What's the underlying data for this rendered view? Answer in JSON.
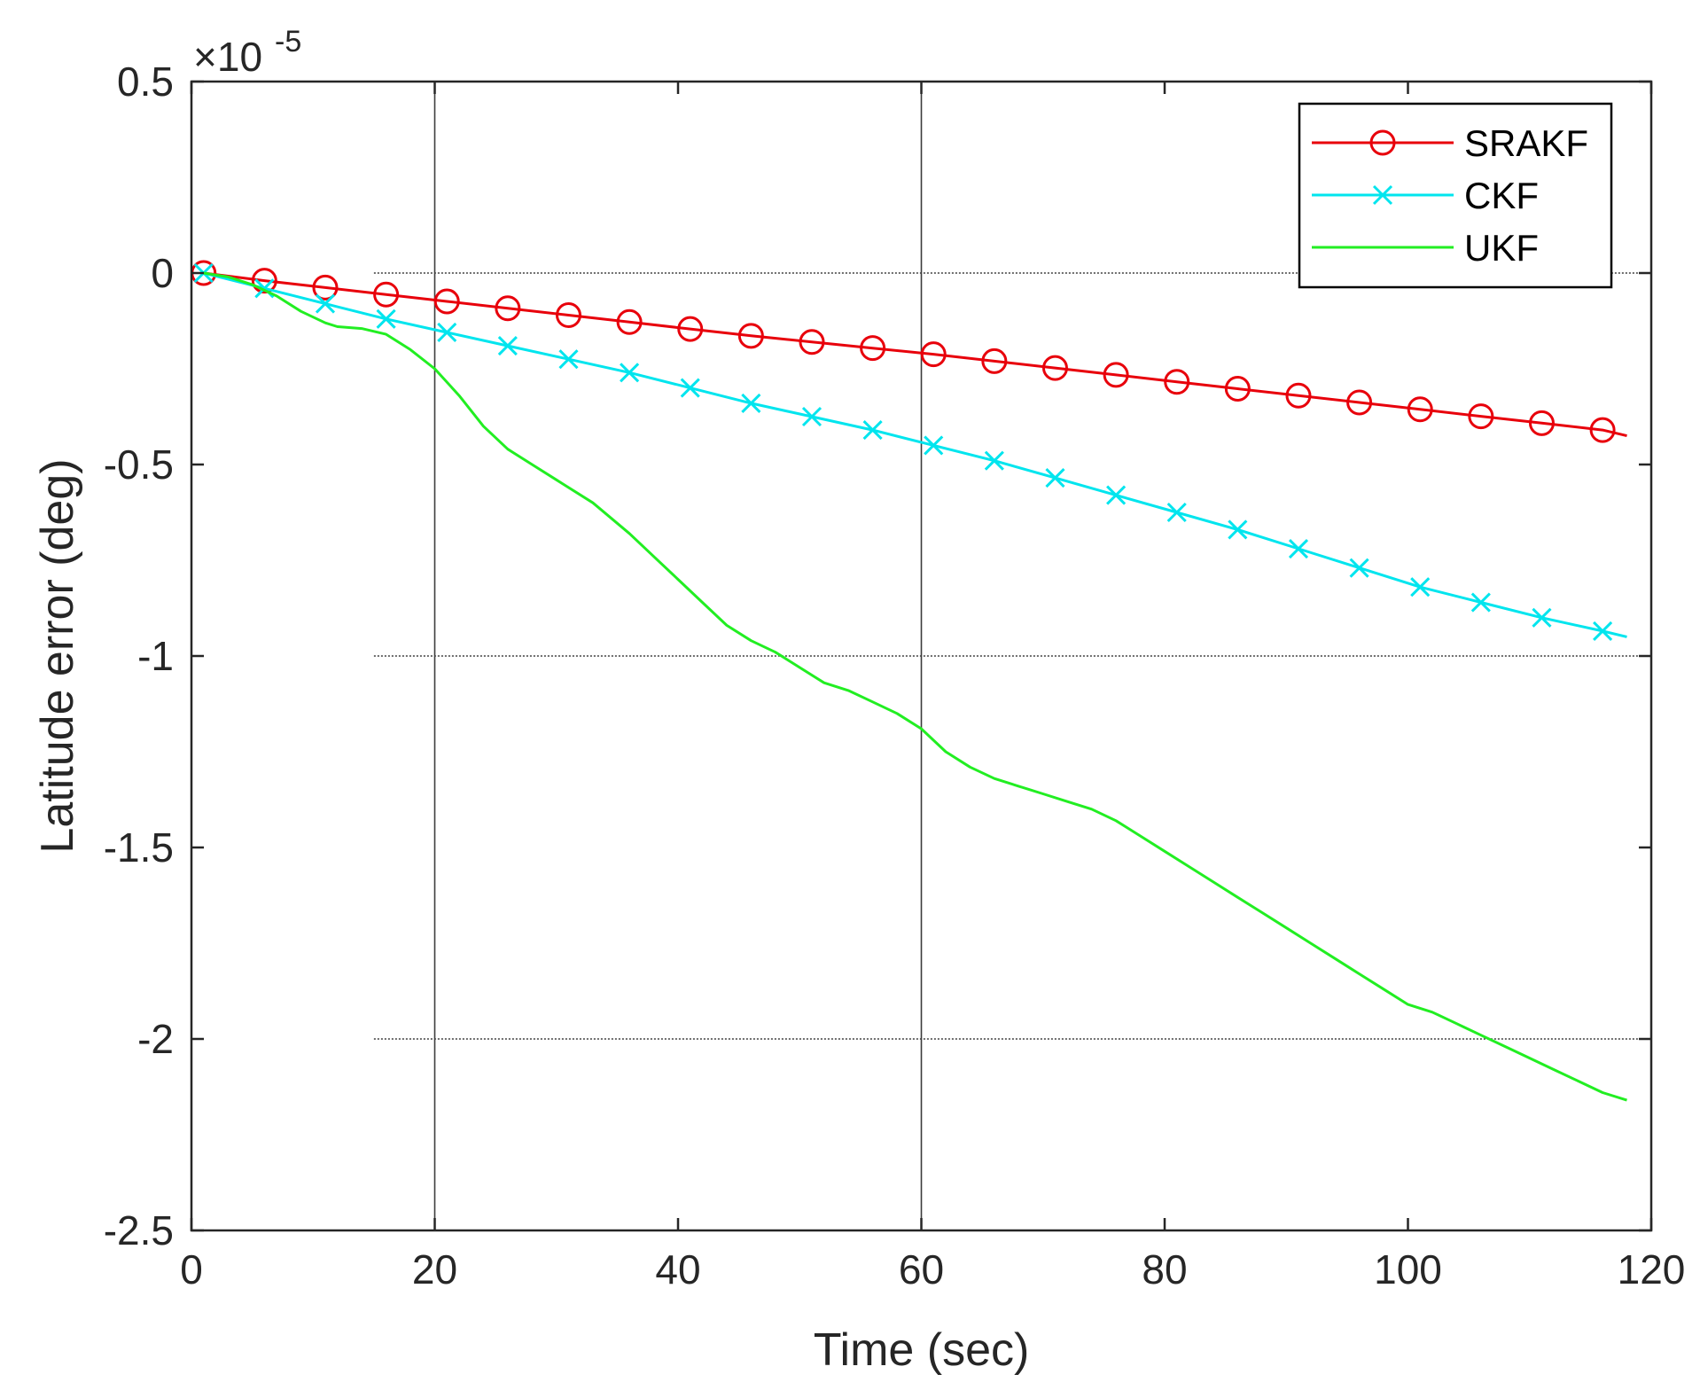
{
  "chart_data": {
    "type": "line",
    "title": "",
    "xlabel": "Time (sec)",
    "ylabel": "Latitude error (deg)",
    "y_exponent_label": "×10",
    "y_exponent_power": "-5",
    "xlim": [
      0,
      120
    ],
    "ylim": [
      -2.5,
      0.5
    ],
    "x_ticks": [
      0,
      20,
      40,
      60,
      80,
      100,
      120
    ],
    "x_tick_labels": [
      "0",
      "20",
      "40",
      "60",
      "80",
      "100",
      "120"
    ],
    "y_ticks": [
      0.5,
      0,
      -0.5,
      -1,
      -1.5,
      -2,
      -2.5
    ],
    "y_tick_labels": [
      "0.5",
      "0",
      "-0.5",
      "-1",
      "-1.5",
      "-2",
      "-2.5"
    ],
    "grid_x": [
      20,
      60
    ],
    "grid_y": [
      0,
      -1,
      -2
    ],
    "legend_position": "top-right",
    "series": [
      {
        "name": "SRAKF",
        "color": "#e8000b",
        "marker": "circle",
        "x": [
          1,
          6,
          11,
          16,
          21,
          26,
          31,
          36,
          41,
          46,
          51,
          56,
          61,
          66,
          71,
          76,
          81,
          86,
          91,
          96,
          101,
          106,
          111,
          116,
          118
        ],
        "y": [
          0,
          -0.02,
          -0.038,
          -0.056,
          -0.074,
          -0.092,
          -0.11,
          -0.128,
          -0.146,
          -0.164,
          -0.18,
          -0.196,
          -0.212,
          -0.23,
          -0.248,
          -0.266,
          -0.284,
          -0.302,
          -0.32,
          -0.338,
          -0.356,
          -0.374,
          -0.392,
          -0.41,
          -0.425
        ]
      },
      {
        "name": "CKF",
        "color": "#00e5ee",
        "marker": "x",
        "x": [
          1,
          6,
          11,
          16,
          21,
          26,
          31,
          36,
          41,
          46,
          51,
          56,
          61,
          66,
          71,
          76,
          81,
          86,
          91,
          96,
          101,
          106,
          111,
          116,
          118
        ],
        "y": [
          0,
          -0.04,
          -0.08,
          -0.12,
          -0.155,
          -0.19,
          -0.225,
          -0.26,
          -0.3,
          -0.34,
          -0.375,
          -0.41,
          -0.45,
          -0.49,
          -0.535,
          -0.58,
          -0.625,
          -0.67,
          -0.72,
          -0.77,
          -0.82,
          -0.86,
          -0.9,
          -0.935,
          -0.95
        ]
      },
      {
        "name": "UKF",
        "color": "#22ee22",
        "marker": "none",
        "x": [
          1,
          3,
          5,
          7,
          9,
          11,
          12,
          14,
          16,
          18,
          20,
          22,
          24,
          26,
          28,
          30,
          33,
          36,
          38,
          40,
          42,
          44,
          46,
          48,
          50,
          52,
          54,
          56,
          58,
          60,
          62,
          64,
          66,
          68,
          70,
          72,
          74,
          76,
          78,
          80,
          82,
          84,
          86,
          88,
          90,
          92,
          94,
          96,
          98,
          100,
          102,
          104,
          106,
          108,
          110,
          112,
          114,
          116,
          118
        ],
        "y": [
          0,
          -0.01,
          -0.03,
          -0.06,
          -0.1,
          -0.13,
          -0.14,
          -0.145,
          -0.16,
          -0.2,
          -0.25,
          -0.32,
          -0.4,
          -0.46,
          -0.5,
          -0.54,
          -0.6,
          -0.68,
          -0.74,
          -0.8,
          -0.86,
          -0.92,
          -0.96,
          -0.99,
          -1.03,
          -1.07,
          -1.09,
          -1.12,
          -1.15,
          -1.19,
          -1.25,
          -1.29,
          -1.32,
          -1.34,
          -1.36,
          -1.38,
          -1.4,
          -1.43,
          -1.47,
          -1.51,
          -1.55,
          -1.59,
          -1.63,
          -1.67,
          -1.71,
          -1.75,
          -1.79,
          -1.83,
          -1.87,
          -1.91,
          -1.93,
          -1.96,
          -1.99,
          -2.02,
          -2.05,
          -2.08,
          -2.11,
          -2.14,
          -2.16
        ]
      }
    ]
  }
}
